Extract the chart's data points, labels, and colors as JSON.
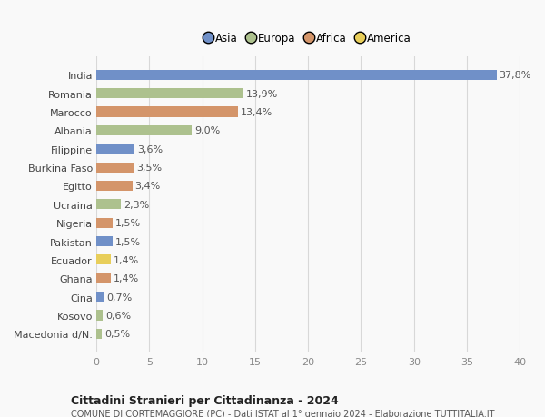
{
  "countries": [
    "Macedonia d/N.",
    "Kosovo",
    "Cina",
    "Ghana",
    "Ecuador",
    "Pakistan",
    "Nigeria",
    "Ucraina",
    "Egitto",
    "Burkina Faso",
    "Filippine",
    "Albania",
    "Marocco",
    "Romania",
    "India"
  ],
  "values": [
    0.5,
    0.6,
    0.7,
    1.4,
    1.4,
    1.5,
    1.5,
    2.3,
    3.4,
    3.5,
    3.6,
    9.0,
    13.4,
    13.9,
    37.8
  ],
  "labels": [
    "0,5%",
    "0,6%",
    "0,7%",
    "1,4%",
    "1,4%",
    "1,5%",
    "1,5%",
    "2,3%",
    "3,4%",
    "3,5%",
    "3,6%",
    "9,0%",
    "13,4%",
    "13,9%",
    "37,8%"
  ],
  "continents": [
    "Europa",
    "Europa",
    "Asia",
    "Africa",
    "America",
    "Asia",
    "Africa",
    "Europa",
    "Africa",
    "Africa",
    "Asia",
    "Europa",
    "Africa",
    "Europa",
    "Asia"
  ],
  "continent_colors": {
    "Asia": "#7090c8",
    "Europa": "#adc18e",
    "Africa": "#d4956a",
    "America": "#e8ce5a"
  },
  "legend_items": [
    "Asia",
    "Europa",
    "Africa",
    "America"
  ],
  "legend_colors": [
    "#7090c8",
    "#adc18e",
    "#d4956a",
    "#e8ce5a"
  ],
  "title": "Cittadini Stranieri per Cittadinanza - 2024",
  "subtitle": "COMUNE DI CORTEMAGGIORE (PC) - Dati ISTAT al 1° gennaio 2024 - Elaborazione TUTTITALIA.IT",
  "xlim": [
    0,
    40
  ],
  "xticks": [
    0,
    5,
    10,
    15,
    20,
    25,
    30,
    35,
    40
  ],
  "background_color": "#f9f9f9",
  "grid_color": "#d8d8d8",
  "bar_height": 0.55,
  "label_fontsize": 8,
  "ytick_fontsize": 8,
  "xtick_fontsize": 8
}
